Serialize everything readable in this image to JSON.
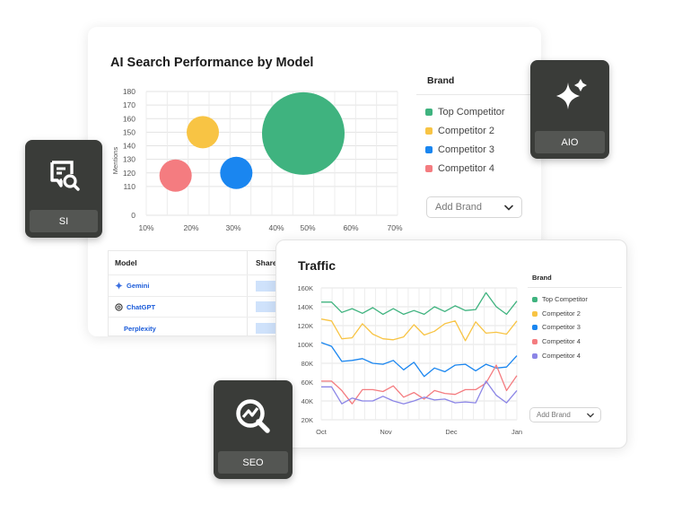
{
  "performance": {
    "title": "AI Search Performance by Model",
    "legend_title": "Brand",
    "legend": [
      {
        "label": "Top Competitor",
        "color": "#3fb37f"
      },
      {
        "label": "Competitor 2",
        "color": "#f8c444"
      },
      {
        "label": "Competitor 3",
        "color": "#1a86f0"
      },
      {
        "label": "Competitor 4",
        "color": "#f47c80"
      }
    ],
    "add_brand_label": "Add Brand",
    "table": {
      "headers": [
        "Model",
        "Share"
      ],
      "rows": [
        {
          "model": "Gemini",
          "icon": "gemini-icon"
        },
        {
          "model": "ChatGPT",
          "icon": "chatgpt-icon"
        },
        {
          "model": "Perplexity",
          "icon": ""
        }
      ]
    }
  },
  "traffic": {
    "title": "Traffic",
    "legend_title": "Brand",
    "legend": [
      {
        "label": "Top Competitor",
        "color": "#3fb37f"
      },
      {
        "label": "Competitor 2",
        "color": "#f8c444"
      },
      {
        "label": "Competitor 3",
        "color": "#1a86f0"
      },
      {
        "label": "Competitor 4",
        "color": "#f47c80"
      },
      {
        "label": "Competitor 4",
        "color": "#8b85e6"
      }
    ],
    "add_brand_label": "Add Brand"
  },
  "badges": {
    "si": {
      "label": "SI",
      "icon": "search-insights-icon"
    },
    "aio": {
      "label": "AIO",
      "icon": "sparkle-icon"
    },
    "seo": {
      "label": "SEO",
      "icon": "seo-search-icon"
    }
  },
  "chart_data": [
    {
      "type": "scatter",
      "title": "AI Search Performance by Model",
      "xlabel": "",
      "ylabel": "Mentions",
      "xlim": [
        10,
        70
      ],
      "ylim": [
        0,
        180
      ],
      "x_ticks": [
        "10%",
        "20%",
        "30%",
        "40%",
        "50%",
        "60%",
        "70%"
      ],
      "y_ticks": [
        "0",
        "110",
        "120",
        "130",
        "140",
        "150",
        "160",
        "170",
        "180"
      ],
      "grid": true,
      "series": [
        {
          "name": "Top Competitor",
          "x": 47.5,
          "y": 149,
          "size": 46,
          "color": "#3fb37f"
        },
        {
          "name": "Competitor 2",
          "x": 23.5,
          "y": 150,
          "size": 18,
          "color": "#f8c444"
        },
        {
          "name": "Competitor 3",
          "x": 31.5,
          "y": 120,
          "size": 18,
          "color": "#1a86f0"
        },
        {
          "name": "Competitor 4",
          "x": 17,
          "y": 118,
          "size": 18,
          "color": "#f47c80"
        }
      ]
    },
    {
      "type": "line",
      "title": "Traffic",
      "x_ticks": [
        "Oct",
        "Nov",
        "Dec",
        "Jan"
      ],
      "y_ticks": [
        "20K",
        "40K",
        "60K",
        "80K",
        "100K",
        "120K",
        "140K",
        "160K"
      ],
      "ylim": [
        20000,
        160000
      ],
      "grid": true,
      "series": [
        {
          "name": "Top Competitor",
          "color": "#3fb37f",
          "values": [
            145000,
            145000,
            134000,
            138000,
            133000,
            139000,
            132000,
            138000,
            132000,
            136000,
            132000,
            140000,
            135000,
            141000,
            136000,
            137000,
            155000,
            140000,
            132000,
            146000
          ]
        },
        {
          "name": "Competitor 2",
          "color": "#f8c444",
          "values": [
            127000,
            125000,
            106000,
            107000,
            122000,
            111000,
            106000,
            105000,
            108000,
            121000,
            110000,
            114000,
            122000,
            125000,
            104000,
            124000,
            112000,
            113000,
            111000,
            125000
          ]
        },
        {
          "name": "Competitor 3",
          "color": "#1a86f0",
          "values": [
            102000,
            98000,
            82000,
            83000,
            85000,
            80000,
            79000,
            83000,
            73000,
            81000,
            66000,
            75000,
            71000,
            78000,
            79000,
            72000,
            79000,
            75000,
            76000,
            88000
          ]
        },
        {
          "name": "Competitor 4",
          "color": "#f47c80",
          "values": [
            61000,
            61000,
            51000,
            37000,
            52000,
            52000,
            50000,
            56000,
            44000,
            49000,
            42000,
            51000,
            48000,
            47000,
            52000,
            52000,
            59000,
            78000,
            51000,
            67000
          ]
        },
        {
          "name": "Competitor 4",
          "color": "#8b85e6",
          "values": [
            55000,
            55000,
            37000,
            43000,
            40000,
            40000,
            45000,
            40000,
            37000,
            40000,
            44000,
            41000,
            42000,
            38000,
            39000,
            38000,
            61000,
            46000,
            38000,
            51000
          ]
        }
      ]
    }
  ]
}
